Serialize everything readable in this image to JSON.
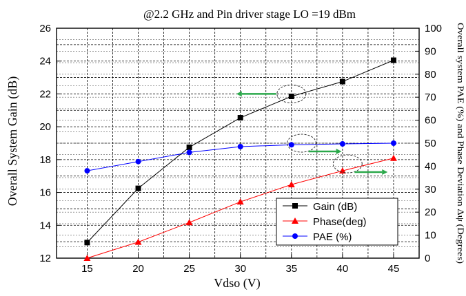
{
  "chart_data": {
    "type": "line",
    "title": "@2.2 GHz and Pin driver stage LO =19 dBm",
    "xlabel": "Vdso  (V)",
    "ylabel_left": "Overall System Gain (dB)",
    "ylabel_right": "Overall system PAE (%) and Phase Deviation  Δψ (Degrees)",
    "x": [
      15,
      20,
      25,
      30,
      35,
      40,
      45
    ],
    "x_ticks": [
      "15",
      "20",
      "25",
      "30",
      "35",
      "40",
      "45"
    ],
    "xlim": [
      12,
      47.5
    ],
    "ylim_left": [
      12,
      26
    ],
    "yticks_left": [
      "12",
      "14",
      "16",
      "18",
      "20",
      "22",
      "24",
      "26"
    ],
    "ylim_right": [
      0,
      100
    ],
    "yticks_right": [
      "0",
      "10",
      "20",
      "30",
      "40",
      "50",
      "60",
      "70",
      "80",
      "90",
      "100"
    ],
    "grid": true,
    "legend_position": "bottom-right",
    "series": [
      {
        "name": "Gain (dB)",
        "axis": "left",
        "color": "#000000",
        "marker": "square",
        "values": [
          12.95,
          16.25,
          18.75,
          20.55,
          21.85,
          22.75,
          24.05
        ]
      },
      {
        "name": "Phase(deg)",
        "axis": "right",
        "color": "#ff0000",
        "marker": "triangle",
        "values": [
          0,
          7,
          15.5,
          24.5,
          32,
          38,
          43.5
        ]
      },
      {
        "name": "PAE (%)",
        "axis": "right",
        "color": "#0000ff",
        "marker": "circle",
        "values": [
          38,
          42,
          46,
          48.5,
          49.3,
          49.7,
          50
        ]
      }
    ],
    "annotations": [
      {
        "type": "ellipse-arrow",
        "target": "Gain (dB)",
        "at_x": 35,
        "at_value": 22,
        "arrow": "left",
        "color": "#2aa84a"
      },
      {
        "type": "ellipse-arrow",
        "target": "PAE (%)",
        "at_x": 36,
        "at_value": 50,
        "arrow": "right",
        "color": "#2aa84a"
      },
      {
        "type": "ellipse-arrow",
        "target": "Phase(deg)",
        "at_x": 40.5,
        "at_value": 41,
        "arrow": "right",
        "color": "#2aa84a"
      }
    ]
  }
}
